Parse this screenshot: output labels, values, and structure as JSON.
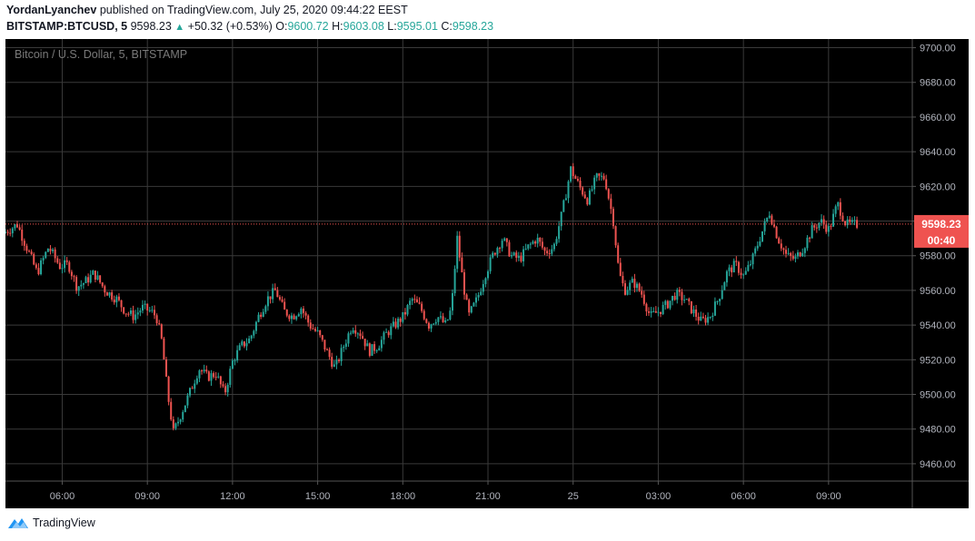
{
  "header": {
    "author": "YordanLyanchev",
    "published_text": "published on TradingView.com, July 25, 2020 09:44:22 EEST",
    "symbol": "BITSTAMP:BTCUSD, 5",
    "last": "9598.23",
    "change": "+50.32 (+0.53%)",
    "o_label": "O:",
    "o_value": "9600.72",
    "h_label": "H:",
    "h_value": "9603.08",
    "l_label": "L:",
    "l_value": "9595.01",
    "c_label": "C:",
    "c_value": "9598.23"
  },
  "footer": {
    "brand": "TradingView"
  },
  "colors": {
    "background": "#000000",
    "grid": "#3a3a3a",
    "up": "#26a69a",
    "down": "#ef5350",
    "price_tag": "#ef5350"
  },
  "chart_data": {
    "type": "candlestick",
    "title": "Bitcoin / U.S. Dollar, 5, BITSTAMP",
    "ylim": [
      9450,
      9705
    ],
    "y_ticks": [
      "9700.00",
      "9680.00",
      "9660.00",
      "9640.00",
      "9620.00",
      "9600.00",
      "9580.00",
      "9560.00",
      "9540.00",
      "9520.00",
      "9500.00",
      "9480.00",
      "9460.00"
    ],
    "x_ticks": [
      "06:00",
      "09:00",
      "12:00",
      "15:00",
      "18:00",
      "21:00",
      "25",
      "03:00",
      "06:00",
      "09:00"
    ],
    "x_tick_times": [
      6,
      9,
      12,
      15,
      18,
      21,
      24,
      27,
      30,
      33
    ],
    "x_range_hours": [
      4.0,
      35.95
    ],
    "last_price": {
      "value": "9598.23",
      "countdown": "00:40"
    },
    "close_path": [
      [
        4.0,
        9593
      ],
      [
        4.5,
        9598
      ],
      [
        4.9,
        9582
      ],
      [
        5.2,
        9570
      ],
      [
        5.6,
        9585
      ],
      [
        6.0,
        9574
      ],
      [
        6.3,
        9575
      ],
      [
        6.6,
        9562
      ],
      [
        6.9,
        9565
      ],
      [
        7.2,
        9570
      ],
      [
        7.6,
        9560
      ],
      [
        8.0,
        9555
      ],
      [
        8.3,
        9548
      ],
      [
        8.6,
        9545
      ],
      [
        8.9,
        9550
      ],
      [
        9.2,
        9548
      ],
      [
        9.4,
        9545
      ],
      [
        9.6,
        9530
      ],
      [
        9.8,
        9500
      ],
      [
        10.0,
        9478
      ],
      [
        10.3,
        9490
      ],
      [
        10.6,
        9502
      ],
      [
        10.9,
        9515
      ],
      [
        11.2,
        9510
      ],
      [
        11.5,
        9512
      ],
      [
        11.8,
        9500
      ],
      [
        12.1,
        9520
      ],
      [
        12.4,
        9528
      ],
      [
        12.7,
        9532
      ],
      [
        13.0,
        9545
      ],
      [
        13.3,
        9555
      ],
      [
        13.6,
        9560
      ],
      [
        13.9,
        9548
      ],
      [
        14.2,
        9545
      ],
      [
        14.5,
        9550
      ],
      [
        14.8,
        9540
      ],
      [
        15.1,
        9535
      ],
      [
        15.4,
        9525
      ],
      [
        15.7,
        9515
      ],
      [
        16.0,
        9528
      ],
      [
        16.3,
        9540
      ],
      [
        16.6,
        9535
      ],
      [
        16.9,
        9525
      ],
      [
        17.2,
        9528
      ],
      [
        17.5,
        9535
      ],
      [
        17.8,
        9540
      ],
      [
        18.1,
        9545
      ],
      [
        18.4,
        9555
      ],
      [
        18.7,
        9550
      ],
      [
        19.0,
        9540
      ],
      [
        19.3,
        9545
      ],
      [
        19.6,
        9540
      ],
      [
        19.8,
        9550
      ],
      [
        20.0,
        9590
      ],
      [
        20.2,
        9565
      ],
      [
        20.4,
        9545
      ],
      [
        20.7,
        9555
      ],
      [
        21.0,
        9570
      ],
      [
        21.3,
        9582
      ],
      [
        21.6,
        9590
      ],
      [
        21.9,
        9580
      ],
      [
        22.2,
        9578
      ],
      [
        22.5,
        9585
      ],
      [
        22.8,
        9590
      ],
      [
        23.1,
        9582
      ],
      [
        23.4,
        9585
      ],
      [
        23.7,
        9605
      ],
      [
        24.0,
        9630
      ],
      [
        24.3,
        9620
      ],
      [
        24.6,
        9612
      ],
      [
        24.9,
        9625
      ],
      [
        25.2,
        9625
      ],
      [
        25.5,
        9600
      ],
      [
        25.7,
        9570
      ],
      [
        25.9,
        9560
      ],
      [
        26.2,
        9565
      ],
      [
        26.5,
        9558
      ],
      [
        26.8,
        9545
      ],
      [
        27.1,
        9548
      ],
      [
        27.4,
        9552
      ],
      [
        27.7,
        9558
      ],
      [
        28.0,
        9555
      ],
      [
        28.3,
        9548
      ],
      [
        28.6,
        9542
      ],
      [
        28.9,
        9545
      ],
      [
        29.2,
        9555
      ],
      [
        29.5,
        9570
      ],
      [
        29.8,
        9575
      ],
      [
        30.1,
        9568
      ],
      [
        30.4,
        9578
      ],
      [
        30.7,
        9592
      ],
      [
        31.0,
        9605
      ],
      [
        31.3,
        9590
      ],
      [
        31.6,
        9580
      ],
      [
        31.9,
        9578
      ],
      [
        32.2,
        9585
      ],
      [
        32.5,
        9595
      ],
      [
        32.8,
        9600
      ],
      [
        33.1,
        9595
      ],
      [
        33.4,
        9610
      ],
      [
        33.7,
        9598
      ],
      [
        34.0,
        9598
      ]
    ]
  }
}
